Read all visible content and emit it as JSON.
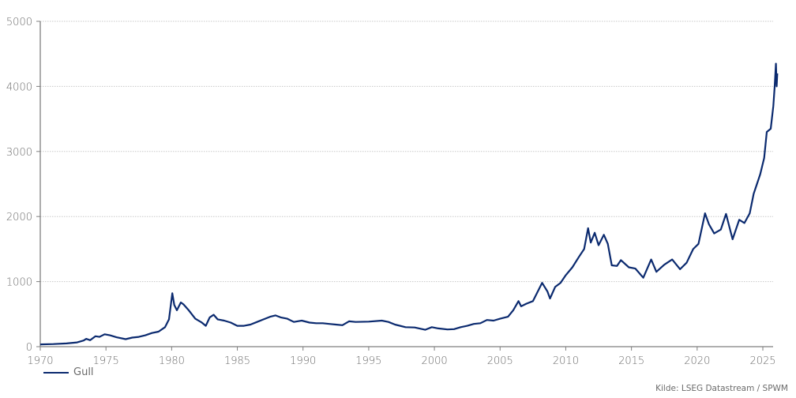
{
  "chart_data": {
    "type": "line",
    "title": "",
    "xlabel": "",
    "ylabel": "",
    "xlim": [
      1970,
      2026
    ],
    "ylim": [
      0,
      5000
    ],
    "grid": {
      "y": true,
      "x": false,
      "style": "dotted"
    },
    "legend_position": "bottom-left",
    "x_ticks": [
      1970,
      1975,
      1980,
      1985,
      1990,
      1995,
      2000,
      2005,
      2010,
      2015,
      2020,
      2025
    ],
    "y_ticks": [
      0,
      1000,
      2000,
      3000,
      4000,
      5000
    ],
    "series": [
      {
        "name": "Gull",
        "color": "#0b2a6f",
        "points": [
          [
            1970.0,
            35
          ],
          [
            1971.0,
            40
          ],
          [
            1972.0,
            50
          ],
          [
            1972.8,
            65
          ],
          [
            1973.3,
            95
          ],
          [
            1973.5,
            120
          ],
          [
            1973.8,
            100
          ],
          [
            1974.2,
            160
          ],
          [
            1974.5,
            150
          ],
          [
            1974.9,
            190
          ],
          [
            1975.3,
            175
          ],
          [
            1975.8,
            145
          ],
          [
            1976.5,
            115
          ],
          [
            1977.0,
            140
          ],
          [
            1977.5,
            150
          ],
          [
            1978.0,
            175
          ],
          [
            1978.5,
            210
          ],
          [
            1979.0,
            230
          ],
          [
            1979.5,
            300
          ],
          [
            1979.8,
            420
          ],
          [
            1980.05,
            820
          ],
          [
            1980.2,
            640
          ],
          [
            1980.4,
            560
          ],
          [
            1980.7,
            680
          ],
          [
            1980.9,
            650
          ],
          [
            1981.3,
            560
          ],
          [
            1981.8,
            430
          ],
          [
            1982.3,
            370
          ],
          [
            1982.6,
            320
          ],
          [
            1982.9,
            450
          ],
          [
            1983.2,
            490
          ],
          [
            1983.5,
            420
          ],
          [
            1984.0,
            400
          ],
          [
            1984.5,
            370
          ],
          [
            1985.0,
            320
          ],
          [
            1985.5,
            320
          ],
          [
            1986.0,
            340
          ],
          [
            1986.5,
            380
          ],
          [
            1987.0,
            420
          ],
          [
            1987.5,
            460
          ],
          [
            1987.9,
            480
          ],
          [
            1988.3,
            450
          ],
          [
            1988.8,
            430
          ],
          [
            1989.3,
            380
          ],
          [
            1989.9,
            400
          ],
          [
            1990.5,
            370
          ],
          [
            1991.0,
            360
          ],
          [
            1991.5,
            360
          ],
          [
            1992.0,
            350
          ],
          [
            1992.5,
            340
          ],
          [
            1993.0,
            330
          ],
          [
            1993.5,
            390
          ],
          [
            1994.0,
            380
          ],
          [
            1995.0,
            385
          ],
          [
            1996.0,
            400
          ],
          [
            1996.5,
            380
          ],
          [
            1997.0,
            340
          ],
          [
            1997.8,
            300
          ],
          [
            1998.5,
            295
          ],
          [
            1999.3,
            260
          ],
          [
            1999.8,
            300
          ],
          [
            2000.3,
            280
          ],
          [
            2001.0,
            265
          ],
          [
            2001.5,
            270
          ],
          [
            2002.0,
            300
          ],
          [
            2002.5,
            320
          ],
          [
            2003.0,
            350
          ],
          [
            2003.5,
            360
          ],
          [
            2004.0,
            410
          ],
          [
            2004.5,
            400
          ],
          [
            2005.0,
            430
          ],
          [
            2005.6,
            460
          ],
          [
            2006.0,
            560
          ],
          [
            2006.4,
            700
          ],
          [
            2006.6,
            620
          ],
          [
            2007.0,
            660
          ],
          [
            2007.5,
            700
          ],
          [
            2008.0,
            900
          ],
          [
            2008.2,
            980
          ],
          [
            2008.6,
            850
          ],
          [
            2008.8,
            740
          ],
          [
            2009.2,
            920
          ],
          [
            2009.6,
            980
          ],
          [
            2010.0,
            1100
          ],
          [
            2010.5,
            1220
          ],
          [
            2011.0,
            1380
          ],
          [
            2011.4,
            1500
          ],
          [
            2011.7,
            1820
          ],
          [
            2011.9,
            1600
          ],
          [
            2012.2,
            1750
          ],
          [
            2012.5,
            1560
          ],
          [
            2012.9,
            1720
          ],
          [
            2013.2,
            1580
          ],
          [
            2013.5,
            1250
          ],
          [
            2013.9,
            1240
          ],
          [
            2014.2,
            1330
          ],
          [
            2014.8,
            1220
          ],
          [
            2015.3,
            1200
          ],
          [
            2015.9,
            1060
          ],
          [
            2016.5,
            1340
          ],
          [
            2016.9,
            1150
          ],
          [
            2017.5,
            1260
          ],
          [
            2018.1,
            1340
          ],
          [
            2018.7,
            1190
          ],
          [
            2019.2,
            1290
          ],
          [
            2019.7,
            1500
          ],
          [
            2020.1,
            1580
          ],
          [
            2020.6,
            2050
          ],
          [
            2020.9,
            1880
          ],
          [
            2021.3,
            1740
          ],
          [
            2021.8,
            1800
          ],
          [
            2022.2,
            2040
          ],
          [
            2022.7,
            1650
          ],
          [
            2023.2,
            1950
          ],
          [
            2023.6,
            1900
          ],
          [
            2024.0,
            2050
          ],
          [
            2024.3,
            2350
          ],
          [
            2024.8,
            2650
          ],
          [
            2025.1,
            2900
          ],
          [
            2025.3,
            3300
          ],
          [
            2025.6,
            3350
          ],
          [
            2025.8,
            3700
          ],
          [
            2025.9,
            4000
          ],
          [
            2026.0,
            4350
          ],
          [
            2026.05,
            4000
          ],
          [
            2026.1,
            4200
          ]
        ]
      }
    ],
    "source": "Kilde: LSEG Datastream / SPWM"
  },
  "legend": {
    "label": "Gull"
  },
  "source": "Kilde: LSEG Datastream / SPWM"
}
